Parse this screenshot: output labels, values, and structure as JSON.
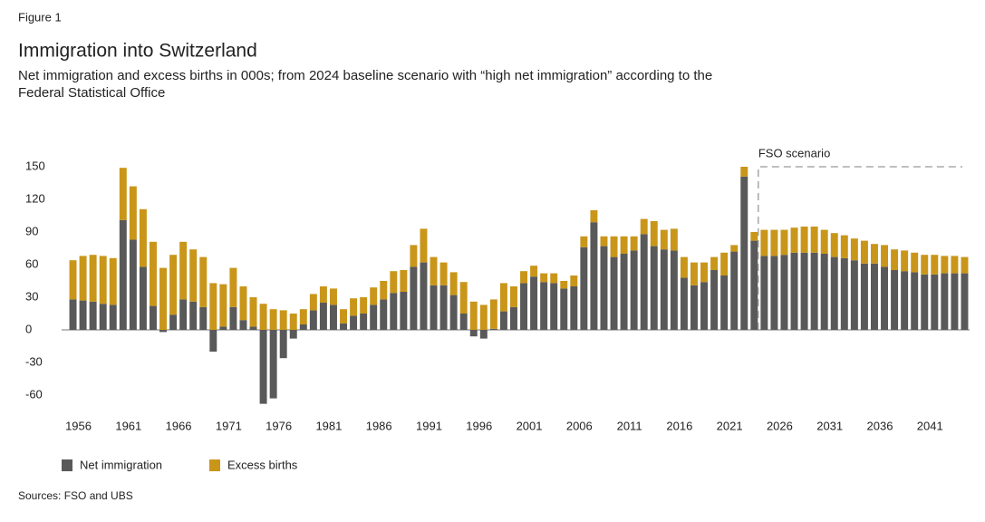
{
  "figure_label": "Figure 1",
  "sources": "Sources: FSO and UBS",
  "chart_data": {
    "type": "stacked_bar",
    "title": "Immigration into Switzerland",
    "subtitle": [
      "Net immigration and excess births in 000s; from 2024 baseline scenario with “high net immigration” according to the",
      "Federal Statistical Office"
    ],
    "annotation": "FSO scenario",
    "categories": [
      "1956",
      null,
      null,
      null,
      null,
      "1961",
      null,
      null,
      null,
      null,
      "1966",
      null,
      null,
      null,
      null,
      "1971",
      null,
      null,
      null,
      null,
      "1976",
      null,
      null,
      null,
      null,
      "1981",
      null,
      null,
      null,
      null,
      "1986",
      null,
      null,
      null,
      null,
      "1991",
      null,
      null,
      null,
      null,
      "1996",
      null,
      null,
      null,
      null,
      "2001",
      null,
      null,
      null,
      null,
      "2006",
      null,
      null,
      null,
      null,
      "2011",
      null,
      null,
      null,
      null,
      "2016",
      null,
      null,
      null,
      null,
      "2021",
      null,
      null,
      null,
      null,
      "2026",
      null,
      null,
      null,
      null,
      "2031",
      null,
      null,
      null,
      null,
      "2036",
      null,
      null,
      null,
      null,
      "2041",
      null,
      null,
      null,
      null
    ],
    "series": [
      {
        "name": "Net immigration",
        "color": "#595959",
        "values": [
          28,
          27,
          26,
          24,
          23,
          101,
          83,
          58,
          22,
          -2,
          14,
          28,
          26,
          21,
          -20,
          3,
          21,
          9,
          3,
          -68,
          -63,
          -26,
          -8,
          5,
          18,
          25,
          23,
          6,
          13,
          15,
          23,
          28,
          34,
          35,
          58,
          62,
          41,
          41,
          32,
          15,
          -6,
          -8,
          1,
          17,
          21,
          43,
          49,
          44,
          43,
          38,
          40,
          76,
          99,
          77,
          67,
          70,
          73,
          88,
          77,
          74,
          73,
          48,
          41,
          44,
          55,
          50,
          72,
          141,
          82,
          68,
          68,
          69,
          71,
          71,
          71,
          70,
          67,
          66,
          64,
          61,
          61,
          58,
          55,
          54,
          53,
          51,
          51,
          52,
          52,
          52
        ]
      },
      {
        "name": "Excess births",
        "color": "#c9961a",
        "values": [
          36,
          41,
          43,
          44,
          43,
          48,
          49,
          53,
          59,
          57,
          55,
          53,
          48,
          46,
          43,
          39,
          36,
          31,
          27,
          24,
          19,
          18,
          15,
          14,
          15,
          15,
          15,
          13,
          16,
          15,
          16,
          17,
          20,
          20,
          20,
          31,
          26,
          21,
          21,
          29,
          26,
          23,
          27,
          26,
          19,
          11,
          10,
          8,
          9,
          7,
          10,
          10,
          11,
          9,
          19,
          16,
          13,
          14,
          23,
          18,
          20,
          19,
          21,
          18,
          12,
          21,
          6,
          9,
          8,
          24,
          24,
          23,
          23,
          24,
          24,
          22,
          22,
          21,
          20,
          21,
          18,
          20,
          19,
          19,
          18,
          18,
          18,
          16,
          16,
          15
        ]
      }
    ],
    "ylim": [
      -75,
      155
    ],
    "yticks": [
      -60,
      -30,
      0,
      30,
      60,
      90,
      120,
      150
    ],
    "legend": "bottom-left"
  }
}
